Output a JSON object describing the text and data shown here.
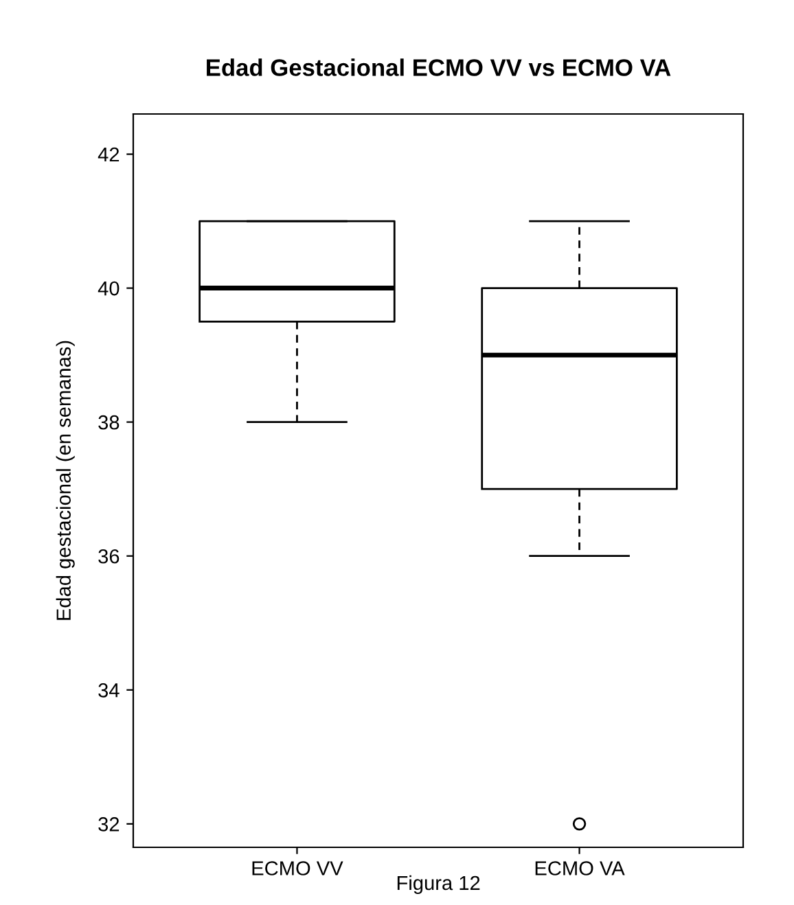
{
  "chart_data": {
    "type": "box",
    "title": "Edad Gestacional ECMO VV vs ECMO VA",
    "ylabel": "Edad gestacional (en semanas)",
    "categories": [
      "ECMO VV",
      "ECMO VA"
    ],
    "boxes": [
      {
        "low": 38,
        "q1": 39.5,
        "median": 40,
        "q3": 41,
        "high": 41
      },
      {
        "low": 36,
        "q1": 37,
        "median": 39,
        "q3": 40,
        "high": 41,
        "outliers": [
          32
        ]
      }
    ],
    "ylim": [
      31.65,
      42.6
    ],
    "yticks": [
      32,
      34,
      36,
      38,
      40,
      42
    ],
    "grid": false,
    "annotations": [
      "Figura 12"
    ]
  }
}
